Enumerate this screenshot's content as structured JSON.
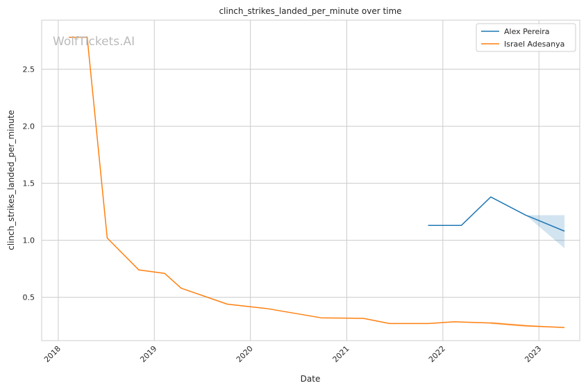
{
  "chart_data": {
    "type": "line",
    "title": "clinch_strikes_landed_per_minute over time",
    "xlabel": "Date",
    "ylabel": "clinch_strikes_landed_per_minute",
    "watermark": "WolfTickets.AI",
    "grid": true,
    "legend_position": "top-right",
    "x_ticks": [
      "2018",
      "2019",
      "2020",
      "2021",
      "2022",
      "2023"
    ],
    "y_ticks": [
      "0.5",
      "1.0",
      "1.5",
      "2.0",
      "2.5"
    ],
    "xlim": [
      "2017-10-30",
      "2023-06-05"
    ],
    "ylim": [
      0.12,
      2.93
    ],
    "series": [
      {
        "name": "Alex Pereira",
        "color": "#1f77b4",
        "points": [
          {
            "x": "2021-11-06",
            "y": 1.13
          },
          {
            "x": "2022-03-12",
            "y": 1.13
          },
          {
            "x": "2022-07-02",
            "y": 1.38
          },
          {
            "x": "2022-11-12",
            "y": 1.22
          },
          {
            "x": "2023-04-08",
            "y": 1.08
          }
        ],
        "band": [
          {
            "x": "2022-11-12",
            "low": 1.22,
            "high": 1.22
          },
          {
            "x": "2023-04-08",
            "low": 0.93,
            "high": 1.22
          }
        ]
      },
      {
        "name": "Israel Adesanya",
        "color": "#ff7f0e",
        "points": [
          {
            "x": "2018-02-10",
            "y": 2.78
          },
          {
            "x": "2018-04-21",
            "y": 2.78
          },
          {
            "x": "2018-07-06",
            "y": 1.02
          },
          {
            "x": "2018-11-03",
            "y": 0.74
          },
          {
            "x": "2019-02-09",
            "y": 0.71
          },
          {
            "x": "2019-04-13",
            "y": 0.58
          },
          {
            "x": "2019-10-05",
            "y": 0.44
          },
          {
            "x": "2020-03-07",
            "y": 0.4
          },
          {
            "x": "2020-09-26",
            "y": 0.32
          },
          {
            "x": "2021-03-06",
            "y": 0.315
          },
          {
            "x": "2021-06-12",
            "y": 0.27
          },
          {
            "x": "2021-11-06",
            "y": 0.27
          },
          {
            "x": "2022-02-12",
            "y": 0.285
          },
          {
            "x": "2022-07-02",
            "y": 0.275
          },
          {
            "x": "2022-11-12",
            "y": 0.25
          },
          {
            "x": "2023-04-08",
            "y": 0.235
          }
        ],
        "band": [
          {
            "x": "2022-07-02",
            "low": 0.265,
            "high": 0.285
          },
          {
            "x": "2022-11-12",
            "low": 0.24,
            "high": 0.26
          },
          {
            "x": "2023-04-08",
            "low": 0.235,
            "high": 0.235
          }
        ]
      }
    ]
  }
}
